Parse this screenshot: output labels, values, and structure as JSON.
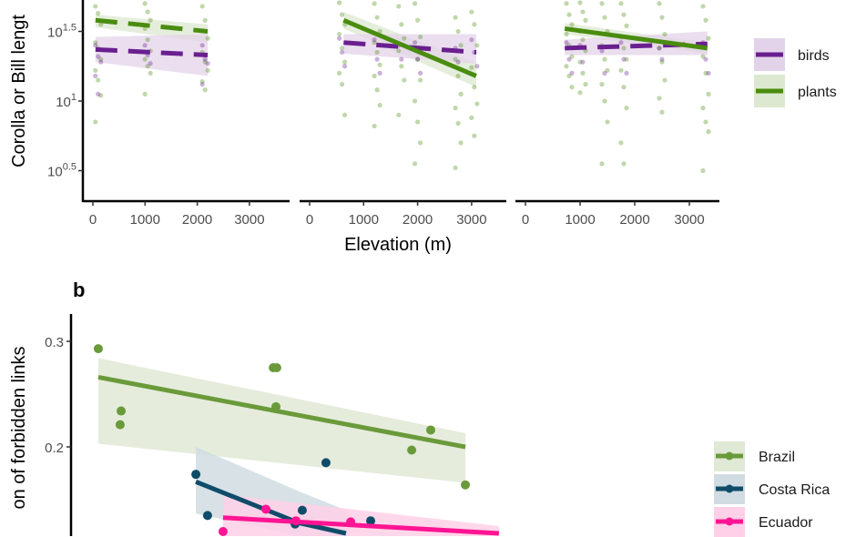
{
  "chart_data": [
    {
      "panel": "a",
      "type": "scatter",
      "xlabel": "Elevation (m)",
      "ylabel": "Corolla or Bill lengt",
      "y_scale": "log10",
      "x_ticks": [
        "0",
        "1000",
        "2000",
        "3000"
      ],
      "y_ticks": [
        {
          "log": 1.5,
          "base": "10",
          "exp": "1.5"
        },
        {
          "log": 1,
          "base": "10",
          "exp": "1"
        },
        {
          "log": 0.5,
          "base": "10",
          "exp": "0.5"
        }
      ],
      "legend": {
        "position": "right",
        "entries": [
          {
            "label": "birds",
            "color": "#6a1f8f",
            "fill": "#e3d3ea"
          },
          {
            "label": "plants",
            "color": "#4a8c0f",
            "fill": "#dce8d0"
          }
        ]
      },
      "facets": [
        {
          "trends": {
            "plants": {
              "dash": true,
              "x": [
                50,
                2200
              ],
              "y": [
                1.58,
                1.5
              ],
              "lo": [
                1.53,
                1.42
              ],
              "hi": [
                1.62,
                1.55
              ]
            },
            "birds": {
              "dash": true,
              "x": [
                50,
                2200
              ],
              "y": [
                1.37,
                1.33
              ],
              "lo": [
                1.28,
                1.18
              ],
              "hi": [
                1.46,
                1.48
              ]
            }
          },
          "points": [
            {
              "x": 100,
              "plants": [
                1.68,
                1.63,
                1.55,
                1.42,
                1.38,
                1.3,
                1.22,
                1.15,
                1.04,
                0.85
              ],
              "birds": [
                1.4,
                1.32,
                1.28,
                1.18,
                1.05
              ]
            },
            {
              "x": 1050,
              "plants": [
                1.7,
                1.64,
                1.58,
                1.52,
                1.44,
                1.36,
                1.3,
                1.25,
                1.2,
                1.05
              ],
              "birds": [
                1.4,
                1.33,
                1.27
              ]
            },
            {
              "x": 2150,
              "plants": [
                1.68,
                1.58,
                1.45,
                1.35,
                1.28,
                1.22,
                1.14,
                1.08
              ],
              "birds": [
                1.4,
                1.3,
                1.27,
                1.12
              ]
            }
          ]
        },
        {
          "trends": {
            "plants": {
              "dash": false,
              "x": [
                630,
                3085
              ],
              "y": [
                1.58,
                1.18
              ],
              "lo": [
                1.52,
                1.1
              ],
              "hi": [
                1.64,
                1.27
              ]
            },
            "birds": {
              "dash": true,
              "x": [
                630,
                3085
              ],
              "y": [
                1.42,
                1.35
              ],
              "lo": [
                1.34,
                1.27
              ],
              "hi": [
                1.48,
                1.48
              ]
            }
          },
          "points": [
            {
              "x": 600,
              "plants": [
                1.72,
                1.62,
                1.55,
                1.48,
                1.38,
                1.28,
                1.2,
                1.12,
                0.9
              ],
              "birds": [
                1.45,
                1.35,
                1.25
              ]
            },
            {
              "x": 1250,
              "plants": [
                1.7,
                1.6,
                1.5,
                1.42,
                1.35,
                1.26,
                1.18,
                1.08,
                0.97,
                0.82
              ],
              "birds": [
                1.44,
                1.3,
                1.2
              ]
            },
            {
              "x": 1700,
              "plants": [
                1.68,
                1.55,
                1.45,
                1.36,
                1.25,
                1.15,
                0.9
              ],
              "birds": [
                1.4,
                1.3
              ]
            },
            {
              "x": 2000,
              "plants": [
                1.7,
                1.58,
                1.46,
                1.37,
                1.3,
                1.15,
                1.0,
                0.85,
                0.7,
                0.55
              ],
              "birds": [
                1.42,
                1.3,
                1.2
              ]
            },
            {
              "x": 2750,
              "plants": [
                1.6,
                1.5,
                1.4,
                1.3,
                1.18,
                1.05,
                0.95,
                0.84,
                0.7,
                0.52
              ],
              "birds": [
                1.38,
                1.28
              ]
            },
            {
              "x": 3050,
              "plants": [
                1.64,
                1.55,
                1.4,
                1.24,
                1.1,
                0.98,
                0.88,
                0.75
              ],
              "birds": [
                1.44,
                1.35,
                1.25
              ]
            }
          ]
        },
        {
          "trends": {
            "plants": {
              "dash": false,
              "x": [
                720,
                3330
              ],
              "y": [
                1.52,
                1.38
              ],
              "lo": [
                1.48,
                1.34
              ],
              "hi": [
                1.56,
                1.42
              ]
            },
            "birds": {
              "dash": true,
              "x": [
                720,
                3330
              ],
              "y": [
                1.38,
                1.41
              ],
              "lo": [
                1.33,
                1.33
              ],
              "hi": [
                1.44,
                1.5
              ]
            }
          },
          "points": [
            {
              "x": 800,
              "plants": [
                1.7,
                1.62,
                1.55,
                1.48,
                1.4,
                1.32,
                1.25,
                1.18,
                1.1
              ],
              "birds": [
                1.42,
                1.3,
                1.2
              ]
            },
            {
              "x": 1050,
              "plants": [
                1.72,
                1.64,
                1.58,
                1.5,
                1.44,
                1.36,
                1.28,
                1.2,
                1.12,
                1.06
              ],
              "birds": [
                1.4,
                1.28
              ]
            },
            {
              "x": 1450,
              "plants": [
                1.7,
                1.6,
                1.5,
                1.4,
                1.3,
                1.22,
                1.12,
                1.0,
                0.85,
                0.55
              ],
              "birds": [
                1.36,
                1.2
              ]
            },
            {
              "x": 1800,
              "plants": [
                1.7,
                1.62,
                1.54,
                1.46,
                1.38,
                1.3,
                1.22,
                1.1,
                0.95,
                0.7,
                0.55
              ],
              "birds": [
                1.42,
                1.3,
                1.2
              ]
            },
            {
              "x": 2500,
              "plants": [
                1.7,
                1.6,
                1.48,
                1.38,
                1.28,
                1.15,
                1.02,
                0.92
              ],
              "birds": [
                1.38,
                1.3
              ]
            },
            {
              "x": 3300,
              "plants": [
                1.68,
                1.58,
                1.45,
                1.32,
                1.2,
                1.05,
                0.95,
                0.85,
                0.78,
                0.5
              ],
              "birds": [
                1.42,
                1.3,
                1.2
              ]
            }
          ]
        }
      ]
    },
    {
      "panel": "b",
      "panel_label": "b",
      "type": "scatter",
      "ylabel": "on of forbidden links",
      "y_ticks": [
        "0.3",
        "0.2"
      ],
      "legend": {
        "position": "right"
      },
      "series": [
        {
          "name": "Brazil",
          "color": "#6a9a3a",
          "fill": "#e0e9d6",
          "x": [
            98,
            235,
            229,
            1147,
            1168,
            1163,
            1977,
            2091,
            2299
          ],
          "y": [
            0.293,
            0.234,
            0.221,
            0.275,
            0.275,
            0.238,
            0.197,
            0.216,
            0.164
          ],
          "trend": {
            "x": [
              98,
              2299
            ],
            "y": [
              0.266,
              0.2
            ],
            "hi": [
              0.284,
              0.213
            ],
            "lo": [
              0.203,
              0.166
            ]
          }
        },
        {
          "name": "Costa Rica",
          "color": "#0f4c6a",
          "fill": "#d0dce2",
          "x": [
            683,
            753,
            1463,
            1321,
            1731,
            1278
          ],
          "y": [
            0.174,
            0.135,
            0.185,
            0.14,
            0.13,
            0.127
          ],
          "trend": {
            "x": [
              683,
              1300,
              1583
            ],
            "y": [
              0.167,
              0.128,
              0.11
            ],
            "hi": [
              0.2,
              0.158,
              0.14
            ],
            "lo": [
              0.137,
              0.1,
              0.08
            ]
          }
        },
        {
          "name": "Ecuador",
          "color": "#ff1493",
          "fill": "#ffd0e8",
          "x": [
            1103,
            1611,
            846,
            1283
          ],
          "y": [
            0.141,
            0.129,
            0.116,
            0.13
          ],
          "trend": {
            "x": [
              846,
              2500
            ],
            "y": [
              0.133,
              0.111
            ],
            "hi": [
              0.155,
              0.125
            ],
            "lo": [
              0.1,
              0.09
            ]
          }
        }
      ]
    }
  ]
}
